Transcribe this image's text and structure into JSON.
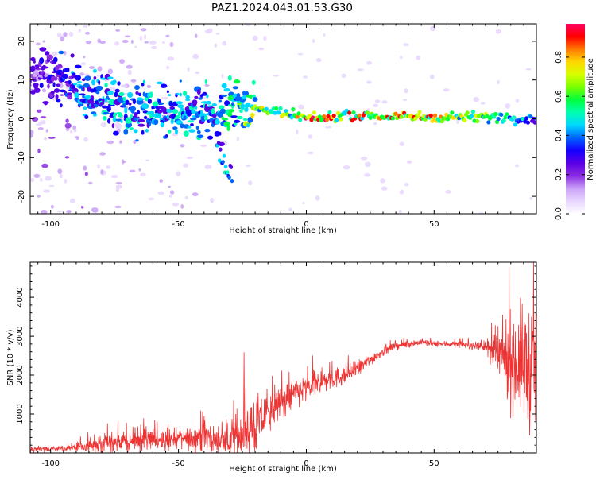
{
  "figure": {
    "title": "PAZ1.2024.043.01.53.G30"
  },
  "chart_data": [
    {
      "type": "heatmap",
      "xlabel": "Height of straight line (km)",
      "ylabel": "Frequency (Hz)",
      "xlim": [
        -108,
        90
      ],
      "ylim": [
        -24.5,
        24.5
      ],
      "xticks": [
        -100,
        -50,
        0,
        50
      ],
      "yticks": [
        -20,
        -10,
        0,
        10,
        20
      ],
      "colorbar": {
        "label": "Normalized spectral amplitude",
        "range": [
          0,
          0.97
        ],
        "ticks": [
          0.0,
          0.2,
          0.4,
          0.6,
          0.8
        ],
        "tick_labels": [
          "0.0",
          "0.2",
          "0.4",
          "0.6",
          "0.8"
        ],
        "colormap": [
          "#ffffff",
          "#e8d6ff",
          "#c9a2f7",
          "#8a2be2",
          "#5a00e6",
          "#1400ff",
          "#0064ff",
          "#00d7ff",
          "#00ffb0",
          "#00ff3c",
          "#78ff00",
          "#d7ff00",
          "#ffd700",
          "#ff7800",
          "#ff0000",
          "#ff0064"
        ]
      },
      "ridge": {
        "x": [
          -107,
          -100,
          -95,
          -90,
          -85,
          -80,
          -75,
          -70,
          -65,
          -60,
          -55,
          -50,
          -45,
          -40,
          -35,
          -30,
          -25,
          -20,
          -15,
          -10,
          -5,
          0,
          5,
          10,
          15,
          20,
          30,
          40,
          50,
          60,
          70,
          80,
          85,
          90
        ],
        "y": [
          11,
          10,
          9,
          8,
          6,
          5,
          3.5,
          3,
          2.5,
          2,
          2,
          2.5,
          2,
          1.5,
          0.5,
          4,
          4,
          2.5,
          2.5,
          1,
          1,
          0,
          0,
          0.5,
          1,
          1,
          0.5,
          0.5,
          0.5,
          0.5,
          0.5,
          0.5,
          0,
          0
        ],
        "amplitude": [
          0.25,
          0.3,
          0.35,
          0.4,
          0.45,
          0.5,
          0.45,
          0.5,
          0.45,
          0.5,
          0.45,
          0.5,
          0.45,
          0.5,
          0.45,
          0.55,
          0.6,
          0.75,
          0.8,
          0.7,
          0.65,
          0.95,
          0.95,
          0.85,
          0.8,
          0.85,
          0.85,
          0.85,
          0.8,
          0.7,
          0.65,
          0.6,
          0.5,
          0.4
        ]
      },
      "branch": {
        "x": [
          -35,
          -33,
          -31,
          -29
        ],
        "y": [
          -6,
          -10,
          -14,
          -15
        ],
        "amplitude": [
          0.4,
          0.45,
          0.5,
          0.4
        ]
      }
    },
    {
      "type": "line",
      "xlabel": "Height of straight line (km)",
      "ylabel": "SNR (10 * v/v)",
      "xlim": [
        -108,
        90
      ],
      "ylim": [
        0,
        4900
      ],
      "xticks": [
        -100,
        -50,
        0,
        50
      ],
      "yticks": [
        1000,
        2000,
        3000,
        4000
      ],
      "color": "#ee3333",
      "envelope": {
        "x": [
          -108,
          -95,
          -90,
          -80,
          -70,
          -60,
          -50,
          -45,
          -40,
          -35,
          -30,
          -25,
          -20,
          -15,
          -10,
          -5,
          0,
          5,
          10,
          15,
          20,
          25,
          30,
          35,
          40,
          45,
          50,
          55,
          60,
          65,
          70,
          72,
          75,
          80,
          85,
          90
        ],
        "mean": [
          100,
          100,
          150,
          200,
          300,
          350,
          350,
          350,
          500,
          300,
          300,
          600,
          700,
          1000,
          1300,
          1500,
          1650,
          1800,
          1900,
          2000,
          2150,
          2400,
          2600,
          2750,
          2800,
          2850,
          2800,
          2800,
          2800,
          2750,
          2750,
          2600,
          2500,
          2400,
          2300,
          2200
        ],
        "spread": [
          80,
          80,
          120,
          250,
          300,
          350,
          250,
          350,
          600,
          300,
          450,
          900,
          900,
          500,
          450,
          450,
          400,
          350,
          300,
          280,
          250,
          180,
          130,
          110,
          100,
          100,
          90,
          90,
          90,
          100,
          150,
          450,
          700,
          1300,
          1700,
          1900
        ]
      }
    }
  ]
}
